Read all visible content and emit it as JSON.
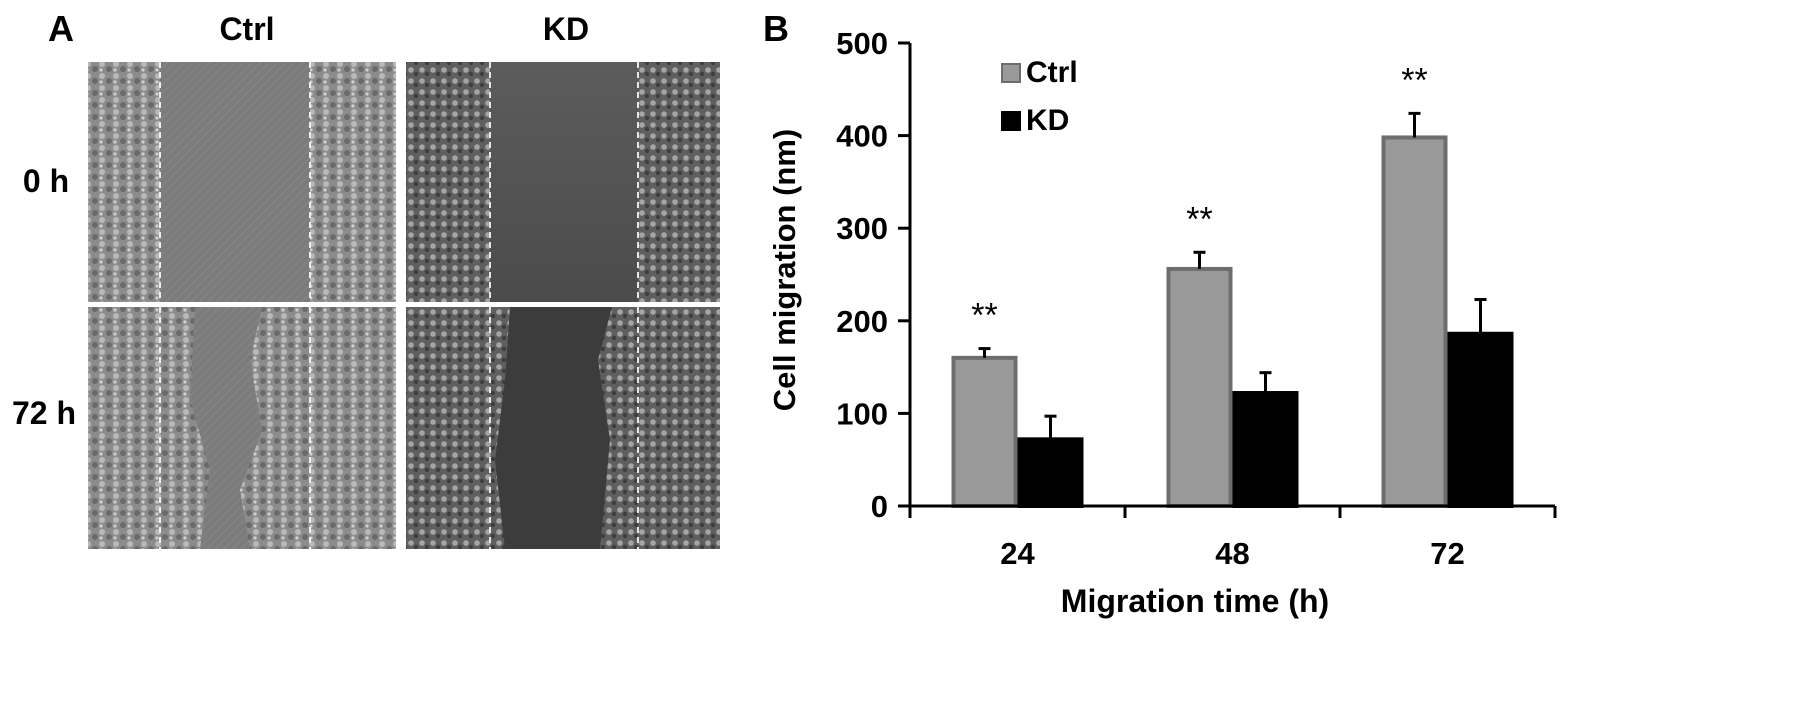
{
  "panel_a": {
    "letter": "A",
    "columns": [
      "Ctrl",
      "KD"
    ],
    "rows": [
      "0 h",
      "72 h"
    ]
  },
  "chart_data": {
    "type": "bar",
    "panel_letter": "B",
    "categories": [
      "24",
      "48",
      "72"
    ],
    "series": [
      {
        "name": "Ctrl",
        "values": [
          160,
          256,
          398
        ],
        "errors": [
          10,
          18,
          26
        ],
        "color": "#999999",
        "edge": "#6d6d6d"
      },
      {
        "name": "KD",
        "values": [
          72,
          122,
          186
        ],
        "errors": [
          25,
          22,
          37
        ],
        "color": "#000000",
        "edge": "#000000"
      }
    ],
    "annotations": [
      "**",
      "**",
      "**"
    ],
    "xlabel": "Migration time (h)",
    "ylabel": "Cell migration (nm)",
    "ylim": [
      0,
      500
    ],
    "yticks": [
      "0",
      "100",
      "200",
      "300",
      "400",
      "500"
    ],
    "grid": false,
    "legend_position": "top-left"
  }
}
